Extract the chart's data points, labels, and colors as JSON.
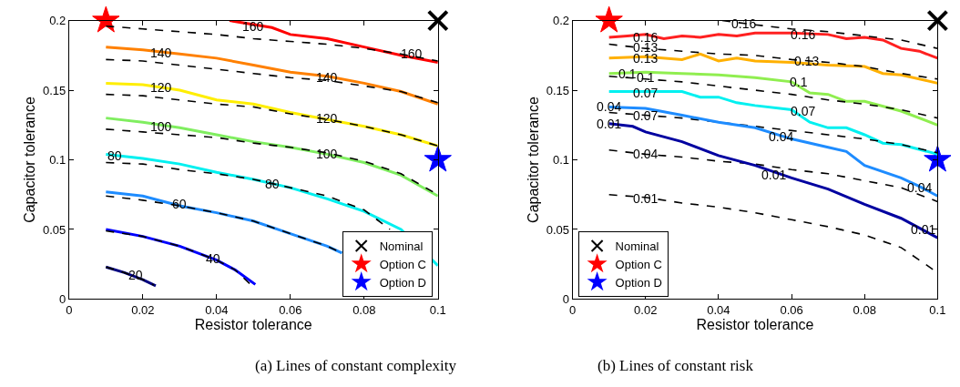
{
  "chart_data": [
    {
      "type": "line",
      "title": "(a) Lines of constant complexity",
      "xlabel": "Resistor tolerance",
      "ylabel": "Capacitor tolerance",
      "xlim": [
        0,
        0.1
      ],
      "ylim": [
        0,
        0.2
      ],
      "xticks": [
        0,
        0.02,
        0.04,
        0.06,
        0.08,
        0.1
      ],
      "yticks": [
        0,
        0.05,
        0.1,
        0.15,
        0.2
      ],
      "legend": "bottom right",
      "series": [
        {
          "color": "#ff0000",
          "line_style": "solid",
          "x": [
            0.0435,
            0.055,
            0.06,
            0.07,
            0.08,
            0.09,
            0.1
          ],
          "values": [
            0.2,
            0.195,
            0.19,
            0.187,
            0.181,
            0.175,
            0.17
          ]
        },
        {
          "color": "#000000",
          "line_style": "dashed",
          "x": [
            0.01,
            0.02,
            0.03,
            0.04,
            0.05,
            0.06,
            0.07,
            0.08,
            0.09,
            0.1
          ],
          "values": [
            0.196,
            0.194,
            0.192,
            0.19,
            0.187,
            0.185,
            0.183,
            0.18,
            0.176,
            0.171
          ]
        },
        {
          "color": "#ff8000",
          "line_style": "solid",
          "x": [
            0.01,
            0.02,
            0.03,
            0.04,
            0.05,
            0.06,
            0.07,
            0.08,
            0.09,
            0.1
          ],
          "values": [
            0.181,
            0.179,
            0.176,
            0.173,
            0.168,
            0.163,
            0.16,
            0.155,
            0.149,
            0.14
          ]
        },
        {
          "color": "#000000",
          "line_style": "dashed",
          "x": [
            0.01,
            0.02,
            0.03,
            0.04,
            0.05,
            0.06,
            0.07,
            0.08,
            0.09,
            0.1
          ],
          "values": [
            0.172,
            0.171,
            0.168,
            0.165,
            0.162,
            0.159,
            0.157,
            0.153,
            0.149,
            0.141
          ]
        },
        {
          "color": "#ffee00",
          "line_style": "solid",
          "x": [
            0.01,
            0.02,
            0.03,
            0.04,
            0.05,
            0.06,
            0.07,
            0.08,
            0.09,
            0.1
          ],
          "values": [
            0.155,
            0.154,
            0.15,
            0.143,
            0.14,
            0.134,
            0.129,
            0.124,
            0.118,
            0.11
          ]
        },
        {
          "color": "#000000",
          "line_style": "dashed",
          "x": [
            0.01,
            0.02,
            0.03,
            0.04,
            0.05,
            0.06,
            0.07,
            0.08,
            0.09,
            0.1
          ],
          "values": [
            0.147,
            0.146,
            0.143,
            0.14,
            0.138,
            0.133,
            0.129,
            0.124,
            0.118,
            0.11
          ]
        },
        {
          "color": "#80ee60",
          "line_style": "solid",
          "x": [
            0.01,
            0.02,
            0.03,
            0.04,
            0.05,
            0.06,
            0.07,
            0.08,
            0.09,
            0.1
          ],
          "values": [
            0.13,
            0.127,
            0.123,
            0.118,
            0.113,
            0.109,
            0.104,
            0.098,
            0.089,
            0.074
          ]
        },
        {
          "color": "#000000",
          "line_style": "dashed",
          "x": [
            0.01,
            0.02,
            0.03,
            0.04,
            0.05,
            0.06,
            0.07,
            0.08,
            0.09,
            0.1
          ],
          "values": [
            0.122,
            0.12,
            0.118,
            0.116,
            0.112,
            0.109,
            0.105,
            0.099,
            0.09,
            0.075
          ]
        },
        {
          "color": "#00f0f0",
          "line_style": "solid",
          "x": [
            0.01,
            0.02,
            0.03,
            0.04,
            0.05,
            0.06,
            0.07,
            0.08,
            0.09,
            0.1
          ],
          "values": [
            0.104,
            0.101,
            0.097,
            0.091,
            0.086,
            0.08,
            0.072,
            0.063,
            0.05,
            0.024
          ]
        },
        {
          "color": "#000000",
          "line_style": "dashed",
          "x": [
            0.01,
            0.02,
            0.03,
            0.04,
            0.05,
            0.06,
            0.07,
            0.08,
            0.087
          ],
          "values": [
            0.098,
            0.097,
            0.093,
            0.09,
            0.086,
            0.08,
            0.074,
            0.064,
            0.05
          ]
        },
        {
          "color": "#1e8cff",
          "line_style": "solid",
          "x": [
            0.01,
            0.02,
            0.03,
            0.04,
            0.05,
            0.06,
            0.07,
            0.074
          ],
          "values": [
            0.077,
            0.074,
            0.067,
            0.062,
            0.056,
            0.047,
            0.038,
            0.033
          ]
        },
        {
          "color": "#000000",
          "line_style": "dashed",
          "x": [
            0.01,
            0.02,
            0.03,
            0.04,
            0.05,
            0.06,
            0.07,
            0.074
          ],
          "values": [
            0.074,
            0.071,
            0.067,
            0.062,
            0.056,
            0.047,
            0.038,
            0.033
          ]
        },
        {
          "color": "#0000ff",
          "line_style": "solid",
          "x": [
            0.01,
            0.02,
            0.03,
            0.04,
            0.045,
            0.0505
          ],
          "values": [
            0.05,
            0.045,
            0.038,
            0.028,
            0.021,
            0.0105
          ]
        },
        {
          "color": "#000000",
          "line_style": "dashed",
          "x": [
            0.01,
            0.02,
            0.03,
            0.04,
            0.045,
            0.049
          ],
          "values": [
            0.049,
            0.045,
            0.038,
            0.028,
            0.021,
            0.011
          ]
        },
        {
          "color": "#000080",
          "line_style": "solid",
          "x": [
            0.01,
            0.015,
            0.02,
            0.0235
          ],
          "values": [
            0.023,
            0.019,
            0.014,
            0.0095
          ]
        },
        {
          "color": "#000000",
          "line_style": "dashed",
          "x": [
            0.01,
            0.015,
            0.02,
            0.023
          ],
          "values": [
            0.023,
            0.019,
            0.014,
            0.01
          ]
        },
        {
          "type": "scatter",
          "name": "Nominal",
          "color": "#000000",
          "marker": "cross",
          "x": [
            0.1
          ],
          "values": [
            0.2
          ]
        },
        {
          "type": "scatter",
          "name": "Option C",
          "color": "#ff0000",
          "marker": "star",
          "x": [
            0.01
          ],
          "values": [
            0.2
          ]
        },
        {
          "type": "scatter",
          "name": "Option D",
          "color": "#0000ff",
          "marker": "star",
          "x": [
            0.1
          ],
          "values": [
            0.1
          ]
        }
      ],
      "annotations": [
        {
          "text": "160",
          "x": 0.05,
          "y": 0.196
        },
        {
          "text": "160",
          "x": 0.093,
          "y": 0.176
        },
        {
          "text": "140",
          "x": 0.025,
          "y": 0.177
        },
        {
          "text": "140",
          "x": 0.07,
          "y": 0.159
        },
        {
          "text": "120",
          "x": 0.025,
          "y": 0.152
        },
        {
          "text": "120",
          "x": 0.07,
          "y": 0.13
        },
        {
          "text": "100",
          "x": 0.025,
          "y": 0.124
        },
        {
          "text": "100",
          "x": 0.07,
          "y": 0.104
        },
        {
          "text": "80",
          "x": 0.0125,
          "y": 0.103
        },
        {
          "text": "80",
          "x": 0.055,
          "y": 0.083
        },
        {
          "text": "60",
          "x": 0.03,
          "y": 0.068
        },
        {
          "text": "40",
          "x": 0.039,
          "y": 0.029
        },
        {
          "text": "20",
          "x": 0.018,
          "y": 0.017
        }
      ]
    },
    {
      "type": "line",
      "title": "(b) Lines of constant risk",
      "xlabel": "Resistor tolerance",
      "ylabel": "Capacitor tolerance",
      "xlim": [
        0,
        0.1
      ],
      "ylim": [
        0,
        0.2
      ],
      "xticks": [
        0,
        0.02,
        0.04,
        0.06,
        0.08,
        0.1
      ],
      "yticks": [
        0,
        0.05,
        0.1,
        0.15,
        0.2
      ],
      "legend": "bottom left",
      "series": [
        {
          "color": "#ff2020",
          "line_style": "solid",
          "x": [
            0.01,
            0.015,
            0.02,
            0.025,
            0.03,
            0.035,
            0.04,
            0.045,
            0.05,
            0.06,
            0.07,
            0.075,
            0.08,
            0.085,
            0.09,
            0.095,
            0.1
          ],
          "values": [
            0.188,
            0.189,
            0.19,
            0.187,
            0.189,
            0.188,
            0.19,
            0.189,
            0.191,
            0.191,
            0.19,
            0.187,
            0.188,
            0.186,
            0.18,
            0.178,
            0.173
          ]
        },
        {
          "color": "#000000",
          "line_style": "dashed",
          "x": [
            0.041,
            0.05,
            0.06,
            0.07,
            0.08,
            0.09,
            0.1
          ],
          "values": [
            0.2,
            0.197,
            0.194,
            0.192,
            0.189,
            0.186,
            0.18
          ]
        },
        {
          "color": "#ffb000",
          "line_style": "solid",
          "x": [
            0.01,
            0.02,
            0.03,
            0.035,
            0.04,
            0.045,
            0.05,
            0.06,
            0.07,
            0.08,
            0.085,
            0.09,
            0.1
          ],
          "values": [
            0.173,
            0.174,
            0.172,
            0.176,
            0.171,
            0.173,
            0.171,
            0.17,
            0.168,
            0.167,
            0.162,
            0.161,
            0.155
          ]
        },
        {
          "color": "#000000",
          "line_style": "dashed",
          "x": [
            0.01,
            0.02,
            0.03,
            0.04,
            0.05,
            0.06,
            0.07,
            0.08,
            0.09,
            0.1
          ],
          "values": [
            0.183,
            0.18,
            0.178,
            0.176,
            0.175,
            0.172,
            0.17,
            0.167,
            0.162,
            0.158
          ]
        },
        {
          "color": "#90ee50",
          "line_style": "solid",
          "x": [
            0.01,
            0.02,
            0.03,
            0.04,
            0.05,
            0.06,
            0.065,
            0.07,
            0.075,
            0.08,
            0.09,
            0.1
          ],
          "values": [
            0.162,
            0.163,
            0.162,
            0.161,
            0.159,
            0.156,
            0.148,
            0.147,
            0.142,
            0.142,
            0.135,
            0.125
          ]
        },
        {
          "color": "#000000",
          "line_style": "dashed",
          "x": [
            0.01,
            0.02,
            0.03,
            0.04,
            0.05,
            0.06,
            0.07,
            0.08,
            0.09,
            0.1
          ],
          "values": [
            0.16,
            0.158,
            0.156,
            0.153,
            0.15,
            0.147,
            0.143,
            0.14,
            0.136,
            0.13
          ]
        },
        {
          "color": "#00f0f0",
          "line_style": "solid",
          "x": [
            0.01,
            0.02,
            0.03,
            0.035,
            0.04,
            0.045,
            0.05,
            0.06,
            0.065,
            0.07,
            0.075,
            0.08,
            0.085,
            0.09,
            0.1
          ],
          "values": [
            0.149,
            0.149,
            0.149,
            0.145,
            0.145,
            0.141,
            0.139,
            0.136,
            0.127,
            0.123,
            0.123,
            0.118,
            0.112,
            0.111,
            0.104
          ]
        },
        {
          "color": "#000000",
          "line_style": "dashed",
          "x": [
            0.01,
            0.02,
            0.03,
            0.04,
            0.05,
            0.06,
            0.07,
            0.08,
            0.09,
            0.1
          ],
          "values": [
            0.134,
            0.132,
            0.13,
            0.127,
            0.124,
            0.121,
            0.118,
            0.115,
            0.111,
            0.105
          ]
        },
        {
          "color": "#1e8cff",
          "line_style": "solid",
          "x": [
            0.01,
            0.02,
            0.03,
            0.04,
            0.05,
            0.06,
            0.07,
            0.075,
            0.08,
            0.09,
            0.095,
            0.1
          ],
          "values": [
            0.138,
            0.137,
            0.132,
            0.127,
            0.123,
            0.115,
            0.109,
            0.106,
            0.096,
            0.087,
            0.081,
            0.074
          ]
        },
        {
          "color": "#000000",
          "line_style": "dashed",
          "x": [
            0.01,
            0.02,
            0.03,
            0.04,
            0.05,
            0.06,
            0.07,
            0.08,
            0.09,
            0.1
          ],
          "values": [
            0.107,
            0.104,
            0.102,
            0.099,
            0.097,
            0.093,
            0.09,
            0.085,
            0.08,
            0.07
          ]
        },
        {
          "color": "#0000a0",
          "line_style": "solid",
          "x": [
            0.01,
            0.0165,
            0.02,
            0.03,
            0.04,
            0.05,
            0.06,
            0.07,
            0.08,
            0.09,
            0.1
          ],
          "values": [
            0.126,
            0.124,
            0.12,
            0.113,
            0.103,
            0.096,
            0.087,
            0.079,
            0.068,
            0.058,
            0.044
          ]
        },
        {
          "color": "#000000",
          "line_style": "dashed",
          "x": [
            0.01,
            0.02,
            0.03,
            0.04,
            0.05,
            0.06,
            0.07,
            0.08,
            0.09,
            0.1
          ],
          "values": [
            0.075,
            0.073,
            0.069,
            0.066,
            0.062,
            0.057,
            0.052,
            0.046,
            0.037,
            0.019
          ]
        },
        {
          "type": "scatter",
          "name": "Nominal",
          "color": "#000000",
          "marker": "cross",
          "x": [
            0.1
          ],
          "values": [
            0.2
          ]
        },
        {
          "type": "scatter",
          "name": "Option C",
          "color": "#ff0000",
          "marker": "star",
          "x": [
            0.01
          ],
          "values": [
            0.2
          ]
        },
        {
          "type": "scatter",
          "name": "Option D",
          "color": "#0000ff",
          "marker": "star",
          "x": [
            0.1
          ],
          "values": [
            0.1
          ]
        }
      ],
      "annotations": [
        {
          "text": "0.16",
          "x": 0.047,
          "y": 0.198
        },
        {
          "text": "0.16",
          "x": 0.02,
          "y": 0.188
        },
        {
          "text": "0.16",
          "x": 0.063,
          "y": 0.19
        },
        {
          "text": "0.13",
          "x": 0.02,
          "y": 0.181
        },
        {
          "text": "0.13",
          "x": 0.02,
          "y": 0.173
        },
        {
          "text": "0.13",
          "x": 0.064,
          "y": 0.171
        },
        {
          "text": "0.1",
          "x": 0.015,
          "y": 0.162
        },
        {
          "text": "0.1",
          "x": 0.02,
          "y": 0.159
        },
        {
          "text": "0.1",
          "x": 0.062,
          "y": 0.156
        },
        {
          "text": "0.07",
          "x": 0.02,
          "y": 0.148
        },
        {
          "text": "0.07",
          "x": 0.02,
          "y": 0.132
        },
        {
          "text": "0.07",
          "x": 0.063,
          "y": 0.135
        },
        {
          "text": "0.04",
          "x": 0.01,
          "y": 0.138
        },
        {
          "text": "0.04",
          "x": 0.057,
          "y": 0.117
        },
        {
          "text": "0.04",
          "x": 0.095,
          "y": 0.08
        },
        {
          "text": "0.04",
          "x": 0.02,
          "y": 0.104
        },
        {
          "text": "0.01",
          "x": 0.01,
          "y": 0.126
        },
        {
          "text": "0.01",
          "x": 0.055,
          "y": 0.089
        },
        {
          "text": "0.01",
          "x": 0.096,
          "y": 0.05
        },
        {
          "text": "0.01",
          "x": 0.02,
          "y": 0.072
        }
      ]
    }
  ]
}
